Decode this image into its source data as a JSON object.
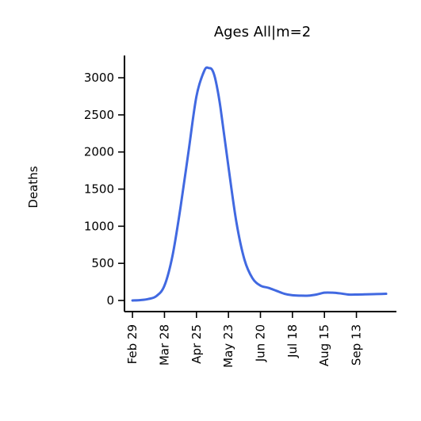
{
  "chart_data": {
    "type": "line",
    "title": "Ages All|m=2",
    "ylabel": "Deaths",
    "xlabel": "",
    "x_ticks": [
      "Feb 29",
      "Mar 28",
      "Apr 25",
      "May 23",
      "Jun 20",
      "Jul 18",
      "Aug 15",
      "Sep 13"
    ],
    "y_ticks": [
      "0",
      "500",
      "1000",
      "1500",
      "2000",
      "2500",
      "3000"
    ],
    "ylim": [
      -150,
      3300
    ],
    "xlim": [
      "2020-02-22",
      "2020-10-17"
    ],
    "grid": false,
    "legend": "none",
    "series": [
      {
        "color": "#4169e1",
        "x": [
          "2020-02-29",
          "2020-03-07",
          "2020-03-14",
          "2020-03-21",
          "2020-03-28",
          "2020-04-04",
          "2020-04-11",
          "2020-04-18",
          "2020-04-25",
          "2020-05-02",
          "2020-05-06",
          "2020-05-09",
          "2020-05-12",
          "2020-05-16",
          "2020-05-23",
          "2020-05-30",
          "2020-06-06",
          "2020-06-13",
          "2020-06-20",
          "2020-06-27",
          "2020-07-04",
          "2020-07-11",
          "2020-07-18",
          "2020-07-25",
          "2020-08-01",
          "2020-08-08",
          "2020-08-15",
          "2020-08-22",
          "2020-08-29",
          "2020-09-05",
          "2020-09-13",
          "2020-09-20",
          "2020-09-27",
          "2020-10-04",
          "2020-10-08"
        ],
        "values": [
          0,
          5,
          20,
          60,
          200,
          600,
          1250,
          2000,
          2750,
          3100,
          3130,
          3100,
          2950,
          2600,
          1800,
          1050,
          550,
          300,
          200,
          170,
          130,
          90,
          70,
          65,
          65,
          80,
          105,
          105,
          95,
          80,
          80,
          82,
          85,
          88,
          90
        ]
      }
    ]
  }
}
